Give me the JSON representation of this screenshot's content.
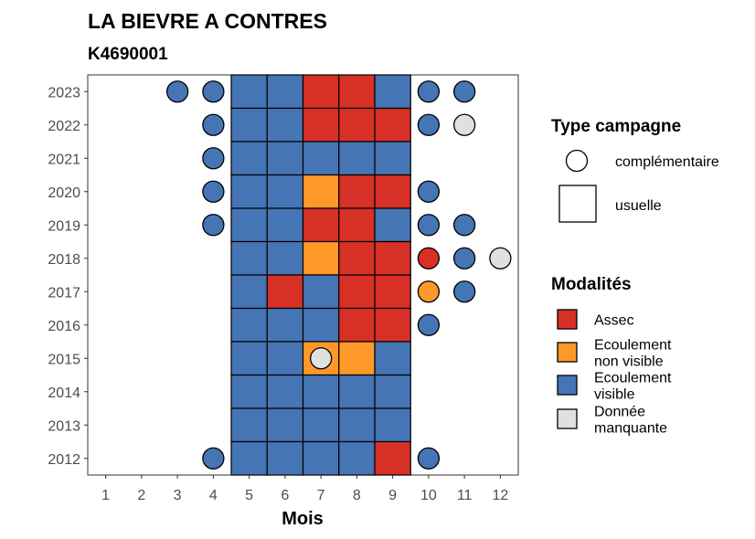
{
  "chart_data": {
    "type": "heatmap",
    "title": "LA BIEVRE A CONTRES",
    "subtitle": "K4690001",
    "xlabel": "Mois",
    "ylabel": "",
    "x_ticks": [
      1,
      2,
      3,
      4,
      5,
      6,
      7,
      8,
      9,
      10,
      11,
      12
    ],
    "y_ticks": [
      2012,
      2013,
      2014,
      2015,
      2016,
      2017,
      2018,
      2019,
      2020,
      2021,
      2022,
      2023
    ],
    "colors": {
      "Assec": "#d73027",
      "Ecoulement non visible": "#fe9929",
      "Ecoulement visible": "#4575b4",
      "Donnée manquante": "#e0e0e0"
    },
    "legend_type": {
      "title": "Type campagne",
      "items": [
        {
          "label": "complémentaire",
          "shape": "circle"
        },
        {
          "label": "usuelle",
          "shape": "square"
        }
      ]
    },
    "legend_modalites": {
      "title": "Modalités",
      "items": [
        {
          "key": "Assec",
          "lines": [
            "Assec"
          ]
        },
        {
          "key": "Ecoulement non visible",
          "lines": [
            "Ecoulement",
            "non visible"
          ]
        },
        {
          "key": "Ecoulement visible",
          "lines": [
            "Ecoulement",
            "visible"
          ]
        },
        {
          "key": "Donnée manquante",
          "lines": [
            "Donnée",
            "manquante"
          ]
        }
      ]
    },
    "usuelle": [
      {
        "year": 2023,
        "months": [
          "Ecoulement visible",
          "Ecoulement visible",
          "Assec",
          "Assec",
          "Ecoulement visible"
        ]
      },
      {
        "year": 2022,
        "months": [
          "Ecoulement visible",
          "Ecoulement visible",
          "Assec",
          "Assec",
          "Assec"
        ]
      },
      {
        "year": 2021,
        "months": [
          "Ecoulement visible",
          "Ecoulement visible",
          "Ecoulement visible",
          "Ecoulement visible",
          "Ecoulement visible"
        ]
      },
      {
        "year": 2020,
        "months": [
          "Ecoulement visible",
          "Ecoulement visible",
          "Ecoulement non visible",
          "Assec",
          "Assec"
        ]
      },
      {
        "year": 2019,
        "months": [
          "Ecoulement visible",
          "Ecoulement visible",
          "Assec",
          "Assec",
          "Ecoulement visible"
        ]
      },
      {
        "year": 2018,
        "months": [
          "Ecoulement visible",
          "Ecoulement visible",
          "Ecoulement non visible",
          "Assec",
          "Assec"
        ]
      },
      {
        "year": 2017,
        "months": [
          "Ecoulement visible",
          "Assec",
          "Ecoulement visible",
          "Assec",
          "Assec"
        ]
      },
      {
        "year": 2016,
        "months": [
          "Ecoulement visible",
          "Ecoulement visible",
          "Ecoulement visible",
          "Assec",
          "Assec"
        ]
      },
      {
        "year": 2015,
        "months": [
          "Ecoulement visible",
          "Ecoulement visible",
          "Ecoulement non visible",
          "Ecoulement non visible",
          "Ecoulement visible"
        ]
      },
      {
        "year": 2014,
        "months": [
          "Ecoulement visible",
          "Ecoulement visible",
          "Ecoulement visible",
          "Ecoulement visible",
          "Ecoulement visible"
        ]
      },
      {
        "year": 2013,
        "months": [
          "Ecoulement visible",
          "Ecoulement visible",
          "Ecoulement visible",
          "Ecoulement visible",
          "Ecoulement visible"
        ]
      },
      {
        "year": 2012,
        "months": [
          "Ecoulement visible",
          "Ecoulement visible",
          "Ecoulement visible",
          "Ecoulement visible",
          "Assec"
        ]
      }
    ],
    "usuelle_first_month": 5,
    "complementaire": [
      {
        "year": 2023,
        "month": 3,
        "value": "Ecoulement visible"
      },
      {
        "year": 2023,
        "month": 4,
        "value": "Ecoulement visible"
      },
      {
        "year": 2023,
        "month": 10,
        "value": "Ecoulement visible"
      },
      {
        "year": 2023,
        "month": 11,
        "value": "Ecoulement visible"
      },
      {
        "year": 2022,
        "month": 4,
        "value": "Ecoulement visible"
      },
      {
        "year": 2022,
        "month": 10,
        "value": "Ecoulement visible"
      },
      {
        "year": 2022,
        "month": 11,
        "value": "Donnée manquante"
      },
      {
        "year": 2021,
        "month": 4,
        "value": "Ecoulement visible"
      },
      {
        "year": 2020,
        "month": 4,
        "value": "Ecoulement visible"
      },
      {
        "year": 2020,
        "month": 10,
        "value": "Ecoulement visible"
      },
      {
        "year": 2019,
        "month": 4,
        "value": "Ecoulement visible"
      },
      {
        "year": 2019,
        "month": 10,
        "value": "Ecoulement visible"
      },
      {
        "year": 2019,
        "month": 11,
        "value": "Ecoulement visible"
      },
      {
        "year": 2018,
        "month": 10,
        "value": "Assec"
      },
      {
        "year": 2018,
        "month": 11,
        "value": "Ecoulement visible"
      },
      {
        "year": 2018,
        "month": 12,
        "value": "Donnée manquante"
      },
      {
        "year": 2017,
        "month": 10,
        "value": "Ecoulement non visible"
      },
      {
        "year": 2017,
        "month": 11,
        "value": "Ecoulement visible"
      },
      {
        "year": 2016,
        "month": 10,
        "value": "Ecoulement visible"
      },
      {
        "year": 2015,
        "month": 7,
        "value": "Donnée manquante"
      },
      {
        "year": 2012,
        "month": 4,
        "value": "Ecoulement visible"
      },
      {
        "year": 2012,
        "month": 10,
        "value": "Ecoulement visible"
      }
    ]
  }
}
